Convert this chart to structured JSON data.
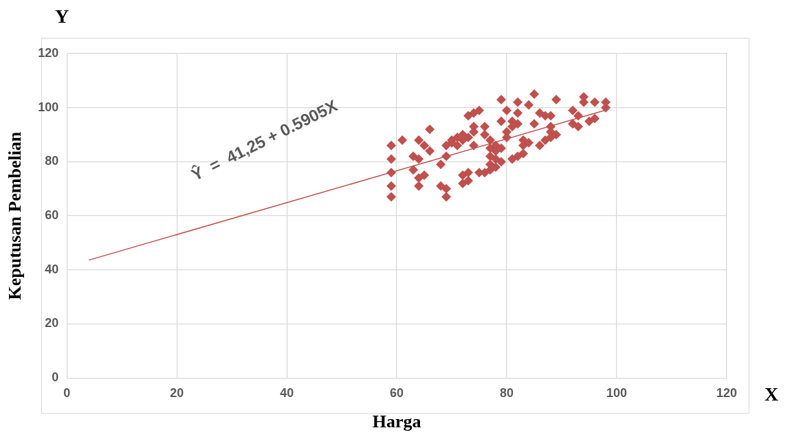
{
  "chart_data": {
    "type": "scatter",
    "xlabel": "Harga",
    "ylabel": "Keputusan Pembelian",
    "annotations": [
      "Ŷ  =  41,25 + 0.5905X",
      "Y",
      "X"
    ],
    "xlim": [
      0,
      120
    ],
    "xticks": [
      0,
      20,
      40,
      60,
      80,
      100,
      120
    ],
    "ylim": [
      0,
      120
    ],
    "yticks": [
      0,
      20,
      40,
      60,
      80,
      100,
      120
    ],
    "grid": true,
    "legend": false,
    "marker": "diamond",
    "series": [
      {
        "color": "#c0504d",
        "x": [
          59,
          59,
          59,
          59,
          59,
          61,
          63,
          63,
          64,
          64,
          64,
          64,
          65,
          65,
          66,
          66,
          68,
          68,
          69,
          69,
          69,
          69,
          70,
          70,
          71,
          71,
          72,
          72,
          72,
          72,
          73,
          73,
          73,
          73,
          74,
          74,
          74,
          74,
          75,
          75,
          76,
          76,
          76,
          77,
          77,
          77,
          77,
          77,
          78,
          78,
          78,
          78,
          79,
          79,
          79,
          79,
          80,
          80,
          80,
          81,
          81,
          81,
          82,
          82,
          82,
          82,
          83,
          83,
          83,
          84,
          84,
          85,
          85,
          86,
          86,
          87,
          87,
          88,
          88,
          88,
          88,
          89,
          89,
          92,
          92,
          93,
          93,
          94,
          94,
          95,
          96,
          96,
          98,
          98
        ],
        "values": [
          86,
          81,
          76,
          71,
          67,
          88,
          82,
          77,
          88,
          81,
          74,
          71,
          86,
          75,
          92,
          84,
          79,
          71,
          86,
          82,
          70,
          67,
          87,
          88,
          89,
          86,
          90,
          88,
          75,
          72,
          97,
          89,
          76,
          73,
          98,
          93,
          91,
          86,
          99,
          76,
          93,
          90,
          76,
          88,
          85,
          82,
          79,
          77,
          86,
          84,
          81,
          78,
          103,
          95,
          85,
          80,
          99,
          91,
          89,
          95,
          93,
          81,
          102,
          98,
          94,
          82,
          88,
          86,
          83,
          101,
          87,
          105,
          94,
          98,
          86,
          97,
          88,
          97,
          93,
          91,
          89,
          103,
          90,
          99,
          94,
          97,
          93,
          104,
          102,
          95,
          102,
          96,
          102,
          100
        ]
      },
      {
        "type": "line",
        "color": "#c0504d",
        "x": [
          4,
          98
        ],
        "values": [
          43.6,
          99.1
        ],
        "marker": "none"
      }
    ]
  }
}
